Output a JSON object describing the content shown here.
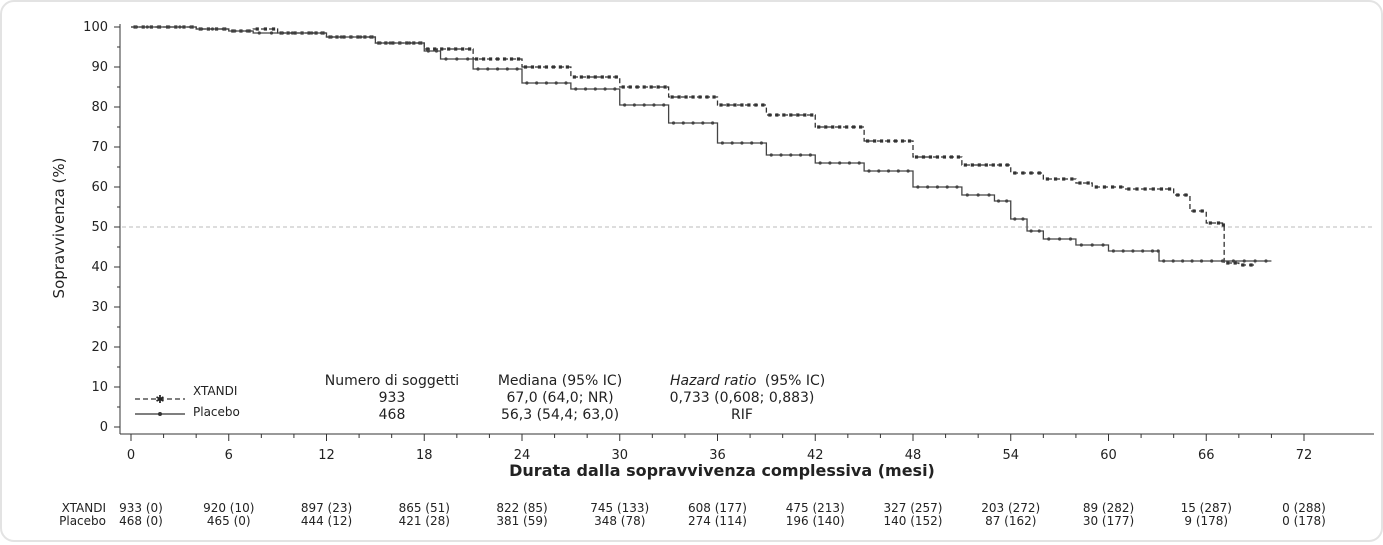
{
  "chart_data": {
    "type": "line",
    "ylabel": "Sopravvivenza (%)",
    "xlabel": "Durata dalla sopravvivenza complessiva (mesi)",
    "xlim": [
      0,
      72
    ],
    "ylim": [
      0,
      100
    ],
    "x_ticks": [
      "0",
      "6",
      "12",
      "18",
      "24",
      "30",
      "36",
      "42",
      "48",
      "54",
      "60",
      "66",
      "72"
    ],
    "y_ticks": [
      "0",
      "10",
      "20",
      "30",
      "40",
      "50",
      "60",
      "70",
      "80",
      "90",
      "100"
    ],
    "reference_line_y": 50,
    "series": [
      {
        "name": "XTANDI",
        "style": "dashed",
        "color": "#333333",
        "x": [
          0,
          2,
          4,
          6,
          7.5,
          9,
          12,
          15,
          18,
          21,
          24,
          27,
          30,
          33,
          36,
          39,
          42,
          45,
          48,
          51,
          54,
          56,
          58,
          59,
          61,
          63,
          64,
          65,
          66,
          67,
          67.1,
          68,
          69
        ],
        "y": [
          100,
          100,
          99.5,
          99,
          99.5,
          98.5,
          97.5,
          96,
          94.5,
          92,
          90,
          87.5,
          85,
          82.5,
          80.5,
          78,
          75,
          71.5,
          67.5,
          65.5,
          63.5,
          62,
          61,
          60,
          59.5,
          59.5,
          58,
          54,
          51,
          50.5,
          41,
          40.5,
          41
        ]
      },
      {
        "name": "Placebo",
        "style": "solid",
        "color": "#444444",
        "x": [
          0,
          2,
          4,
          6,
          7.5,
          9,
          12,
          15,
          18,
          19,
          21,
          24,
          27,
          30,
          33,
          36,
          39,
          42,
          45,
          48,
          51,
          53,
          54,
          55,
          56,
          58,
          60,
          63,
          63.1,
          66,
          70
        ],
        "y": [
          100,
          100,
          99.5,
          99,
          98.5,
          98.5,
          97.5,
          96,
          94,
          92,
          89.5,
          86,
          84.5,
          80.5,
          76,
          71,
          68,
          66,
          64,
          60,
          58,
          56.5,
          52,
          49,
          47,
          45.5,
          44,
          44,
          41.5,
          41.5,
          41.5
        ]
      }
    ],
    "legend": {
      "position": "bottom-left",
      "entries": [
        "XTANDI",
        "Placebo"
      ]
    },
    "stats_table": {
      "headers": [
        "Numero di soggetti",
        "Mediana (95% IC)",
        "Hazard ratio",
        "(95% IC)"
      ],
      "rows": [
        [
          "933",
          "67,0 (64,0; NR)",
          "0,733 (0,608; 0,883)"
        ],
        [
          "468",
          "56,3 (54,4; 63,0)",
          "RIF"
        ]
      ]
    },
    "risk_table": {
      "rows": [
        {
          "label": "XTANDI",
          "values": [
            "933 (0)",
            "920 (10)",
            "897 (23)",
            "865 (51)",
            "822 (85)",
            "745 (133)",
            "608 (177)",
            "475 (213)",
            "327 (257)",
            "203 (272)",
            "89 (282)",
            "15 (287)",
            "0 (288)"
          ]
        },
        {
          "label": "Placebo",
          "values": [
            "468 (0)",
            "465 (0)",
            "444 (12)",
            "421 (28)",
            "381 (59)",
            "348 (78)",
            "274 (114)",
            "196 (140)",
            "140 (152)",
            "87 (162)",
            "30 (177)",
            "9 (178)",
            "0 (178)"
          ]
        }
      ]
    }
  }
}
